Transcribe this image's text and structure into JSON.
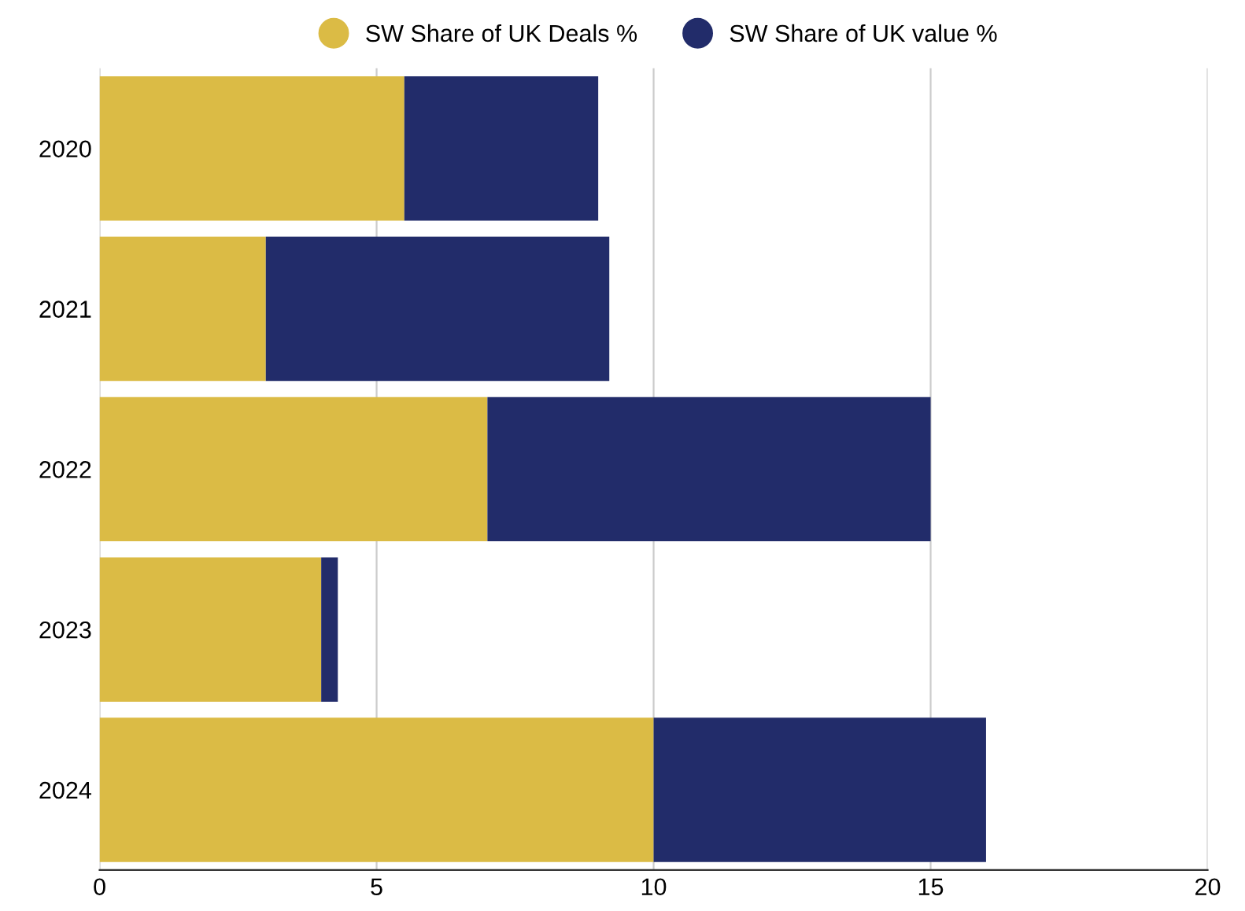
{
  "chart_data": {
    "type": "bar",
    "orientation": "horizontal",
    "stacked": true,
    "categories": [
      "2020",
      "2021",
      "2022",
      "2023",
      "2024"
    ],
    "series": [
      {
        "name": "SW Share of UK Deals %",
        "color": "#dbbb45",
        "values": [
          5.5,
          3.0,
          7.0,
          4.0,
          10.0
        ]
      },
      {
        "name": "SW Share of UK value %",
        "color": "#222c6a",
        "values": [
          3.5,
          6.2,
          8.0,
          0.3,
          6.0
        ]
      }
    ],
    "xlim": [
      0,
      20
    ],
    "xticks": [
      0,
      5,
      10,
      15,
      20
    ],
    "grid": "x",
    "legend": "top"
  }
}
